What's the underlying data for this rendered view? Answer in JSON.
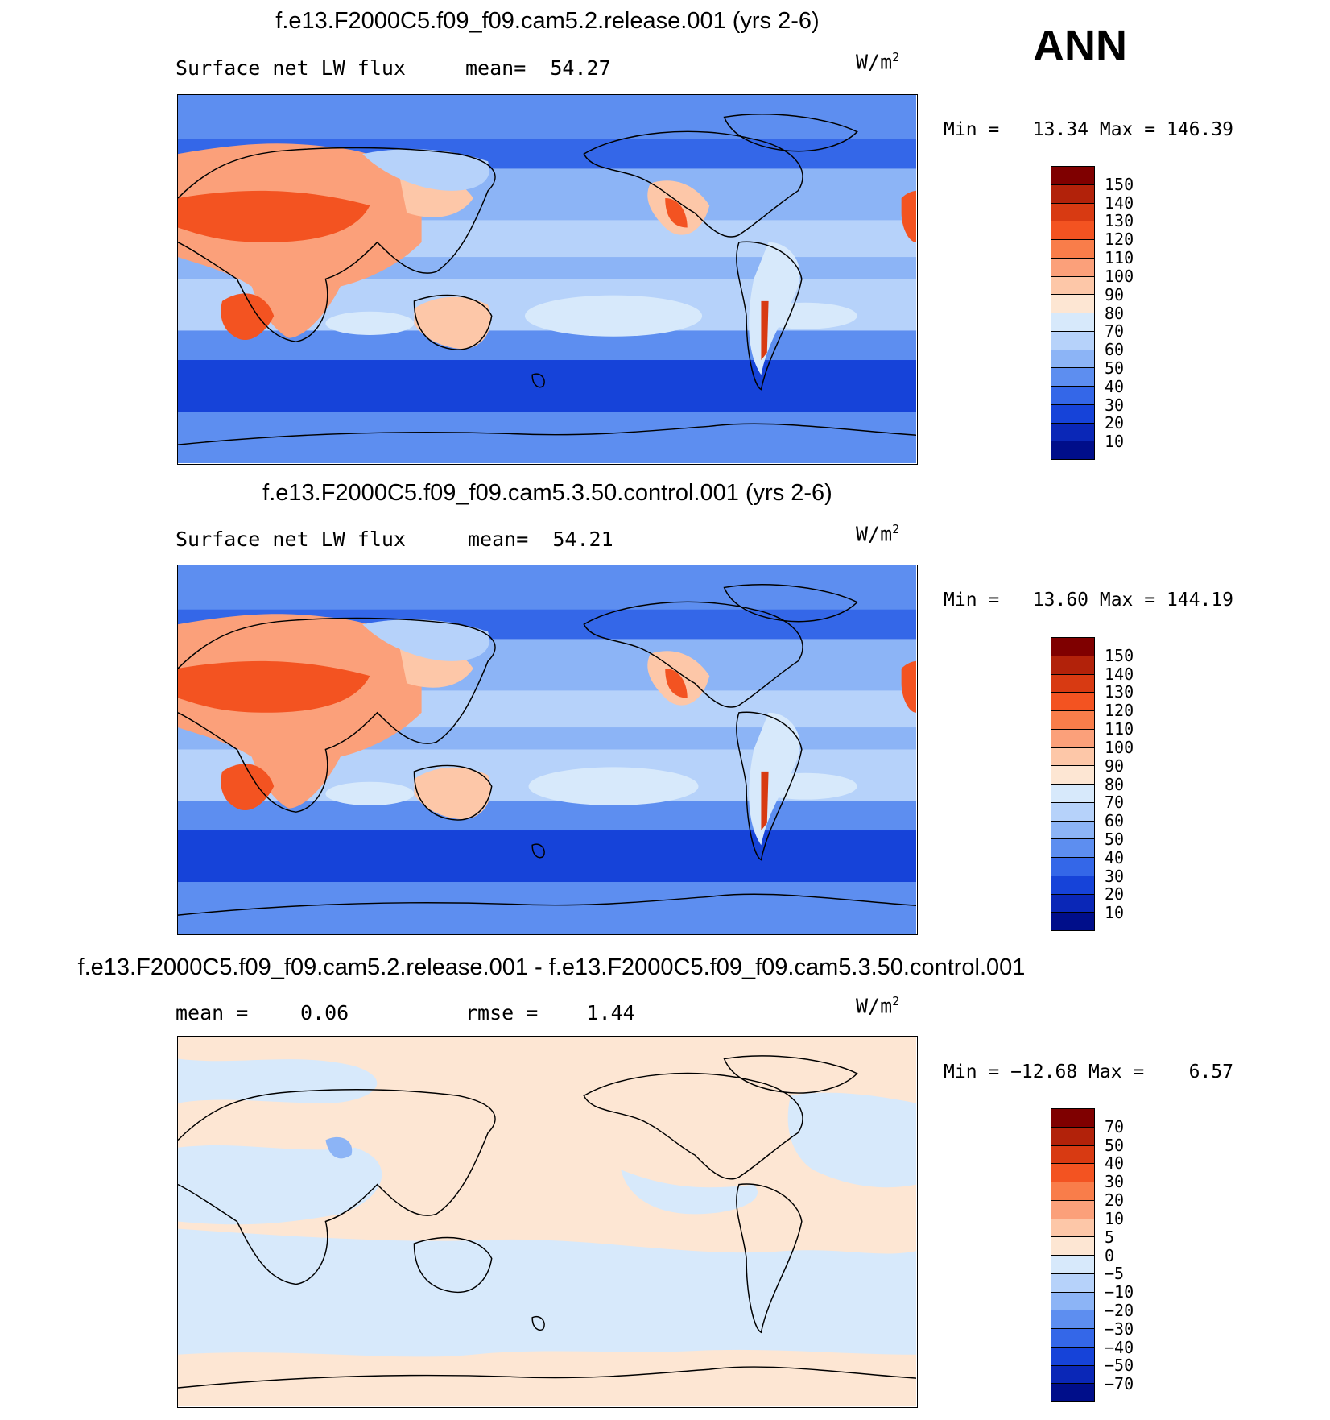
{
  "season": "ANN",
  "panels": [
    {
      "title": "f.e13.F2000C5.f09_f09.cam5.2.release.001 (yrs 2-6)",
      "variable": "Surface net LW flux",
      "stat1": "mean=  54.27",
      "stat2": "",
      "units": "W/m",
      "units_exp": "2",
      "minmax": "Min =   13.34 Max = 146.39",
      "colorbar_labels": [
        "150",
        "140",
        "130",
        "120",
        "110",
        "100",
        "90",
        "80",
        "70",
        "60",
        "50",
        "40",
        "30",
        "20",
        "10"
      ],
      "colorbar_colors": [
        "#7f0000",
        "#b2220a",
        "#d83a12",
        "#f35321",
        "#f97d4a",
        "#fba07a",
        "#fdc7a8",
        "#fde6d3",
        "#d7e9fb",
        "#b6d2fa",
        "#8cb4f6",
        "#5d8ef0",
        "#3467e8",
        "#1643d9",
        "#0a27b7",
        "#000e8a"
      ]
    },
    {
      "title": "f.e13.F2000C5.f09_f09.cam5.3.50.control.001 (yrs 2-6)",
      "variable": "Surface net LW flux",
      "stat1": "mean=  54.21",
      "stat2": "",
      "units": "W/m",
      "units_exp": "2",
      "minmax": "Min =   13.60 Max = 144.19",
      "colorbar_labels": [
        "150",
        "140",
        "130",
        "120",
        "110",
        "100",
        "90",
        "80",
        "70",
        "60",
        "50",
        "40",
        "30",
        "20",
        "10"
      ],
      "colorbar_colors": [
        "#7f0000",
        "#b2220a",
        "#d83a12",
        "#f35321",
        "#f97d4a",
        "#fba07a",
        "#fdc7a8",
        "#fde6d3",
        "#d7e9fb",
        "#b6d2fa",
        "#8cb4f6",
        "#5d8ef0",
        "#3467e8",
        "#1643d9",
        "#0a27b7",
        "#000e8a"
      ]
    },
    {
      "title": "f.e13.F2000C5.f09_f09.cam5.2.release.001 - f.e13.F2000C5.f09_f09.cam5.3.50.control.001",
      "variable": "mean =",
      "stat1": "0.06",
      "stat2": "rmse =    1.44",
      "units": "W/m",
      "units_exp": "2",
      "minmax": "Min = −12.68 Max =    6.57",
      "colorbar_labels": [
        "70",
        "50",
        "40",
        "30",
        "20",
        "10",
        "5",
        "0",
        "−5",
        "−10",
        "−20",
        "−30",
        "−40",
        "−50",
        "−70"
      ],
      "colorbar_colors": [
        "#7f0000",
        "#b2220a",
        "#d83a12",
        "#f35321",
        "#f97d4a",
        "#fba07a",
        "#fdc7a8",
        "#fde6d3",
        "#d7e9fb",
        "#b6d2fa",
        "#8cb4f6",
        "#5d8ef0",
        "#3467e8",
        "#1643d9",
        "#0a27b7",
        "#000e8a"
      ]
    }
  ]
}
